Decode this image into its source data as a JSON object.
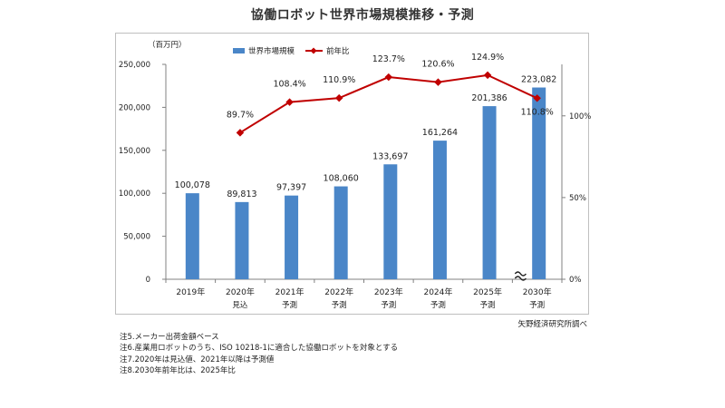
{
  "title": "協働ロボット世界市場規模推移・予測",
  "chart_data": {
    "type": "bar",
    "title": "協働ロボット世界市場規模推移・予測",
    "y_unit_label": "（百万円）",
    "categories": [
      "2019年",
      "2020年",
      "2021年",
      "2022年",
      "2023年",
      "2024年",
      "2025年",
      "2030年"
    ],
    "category_sublabels": [
      "",
      "見込",
      "予測",
      "予測",
      "予測",
      "予測",
      "予測",
      "予測"
    ],
    "series": [
      {
        "name": "世界市場規模",
        "type": "bar",
        "axis": "left",
        "color": "#4a86c8",
        "values": [
          100078,
          89813,
          97397,
          108060,
          133697,
          161264,
          201386,
          223082
        ],
        "labels": [
          "100,078",
          "89,813",
          "97,397",
          "108,060",
          "133,697",
          "161,264",
          "201,386",
          "223,082"
        ]
      },
      {
        "name": "前年比",
        "type": "line",
        "axis": "right",
        "color": "#c00000",
        "values": [
          null,
          89.7,
          108.4,
          110.9,
          123.7,
          120.6,
          124.9,
          110.8
        ],
        "labels": [
          "",
          "89.7%",
          "108.4%",
          "110.9%",
          "123.7%",
          "120.6%",
          "124.9%",
          "110.8%"
        ]
      }
    ],
    "y_left": {
      "range": [
        0,
        250000
      ],
      "ticks": [
        0,
        50000,
        100000,
        150000,
        200000,
        250000
      ],
      "tick_labels": [
        "0",
        "50,000",
        "100,000",
        "150,000",
        "200,000",
        "250,000"
      ]
    },
    "y_right": {
      "range": [
        0,
        131.5
      ],
      "ticks": [
        0,
        50,
        100
      ],
      "tick_labels": [
        "0%",
        "50%",
        "100%"
      ]
    },
    "axis_break_before": "2030年",
    "legend_position": "top",
    "grid": false
  },
  "source": "矢野経済研究所調べ",
  "notes": [
    "注5.メーカー出荷金額ベース",
    "注6.産業用ロボットのうち、ISO 10218-1に適合した協働ロボットを対象とする",
    "注7.2020年は見込値、2021年以降は予測値",
    "注8.2030年前年比は、2025年比"
  ]
}
